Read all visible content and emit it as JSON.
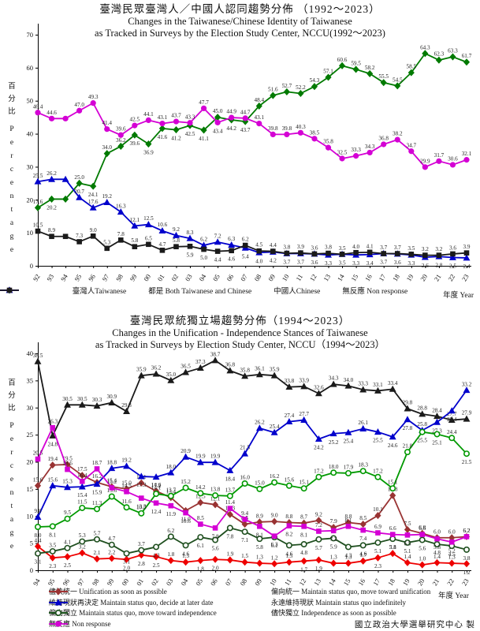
{
  "footer": "國立政治大學選舉研究中心 製",
  "chart_data": [
    {
      "type": "line",
      "title_zh": "臺灣民眾臺灣人／中國人認同趨勢分佈 （1992～2023）",
      "title_en1": "Changes in the Taiwanese/Chinese Identity of Taiwanese",
      "title_en2": "as Tracked in Surveys by the Election Study Center, NCCU(1992～2023)",
      "x_axis_label": "年度 Year",
      "y_axis_label_zh": "百分比",
      "y_axis_label_en": "Percentage",
      "ylim": [
        0,
        70
      ],
      "y_ticks": [
        0,
        10,
        20,
        30,
        40,
        50,
        60,
        70
      ],
      "grid": false,
      "legend_position": "bottom",
      "categories": [
        "92",
        "93",
        "94",
        "95",
        "96",
        "97",
        "98",
        "99",
        "00",
        "01",
        "02",
        "03",
        "04",
        "05",
        "06",
        "07",
        "08",
        "09",
        "10",
        "11",
        "12",
        "13",
        "14",
        "15",
        "16",
        "17",
        "18",
        "19",
        "20",
        "21",
        "22",
        "23"
      ],
      "series": [
        {
          "key": "taiwanese",
          "legend": "臺灣人Taiwanese",
          "color": "#007A00",
          "marker": "diamond",
          "values": [
            17.6,
            20.2,
            20.2,
            25.0,
            24.1,
            34.0,
            36.2,
            39.6,
            36.9,
            41.6,
            41.2,
            42.5,
            41.1,
            45.0,
            44.2,
            43.7,
            48.4,
            51.6,
            52.7,
            52.2,
            54.3,
            57.1,
            60.6,
            59.5,
            58.2,
            55.5,
            54.5,
            58.5,
            64.3,
            62.3,
            63.3,
            61.7
          ],
          "skip_label": [
            2
          ],
          "label_below": [
            1,
            4,
            7,
            8,
            9,
            10,
            11,
            12,
            14,
            15
          ]
        },
        {
          "key": "both",
          "legend": "都是 Both Taiwanese and Chinese",
          "color": "#D400D4",
          "marker": "circle",
          "values": [
            46.4,
            44.6,
            44.6,
            47.0,
            49.3,
            41.4,
            39.6,
            42.5,
            44.1,
            43.1,
            43.7,
            43.3,
            47.7,
            43.4,
            44.9,
            44.7,
            43.1,
            39.8,
            39.8,
            40.3,
            38.5,
            35.8,
            32.5,
            33.3,
            34.3,
            36.8,
            38.2,
            34.7,
            29.9,
            31.7,
            30.6,
            32.1
          ],
          "skip_label": [
            2
          ],
          "label_below": [
            13
          ]
        },
        {
          "key": "chinese",
          "legend": "中國人Chinese",
          "color": "#0000CC",
          "marker": "triangle",
          "values": [
            25.5,
            26.2,
            26.2,
            20.7,
            17.6,
            19.2,
            16.3,
            12.1,
            12.5,
            10.6,
            9.2,
            8.3,
            6.2,
            7.2,
            6.3,
            5.4,
            4.0,
            4.2,
            3.7,
            3.7,
            3.6,
            3.3,
            3.5,
            3.3,
            3.4,
            3.7,
            3.6,
            3.3,
            2.6,
            2.8,
            2.5,
            2.4
          ],
          "skip_label": [
            2
          ],
          "label_below": [
            15,
            16,
            17,
            18,
            19,
            20,
            21,
            22,
            23,
            24,
            25,
            26,
            27,
            28,
            29,
            30,
            31
          ]
        },
        {
          "key": "nonresponse",
          "legend": "無反應 Non response",
          "color": "#1A1A1A",
          "marker": "square",
          "values": [
            10.5,
            8.9,
            8.9,
            7.3,
            9.0,
            5.3,
            7.8,
            5.8,
            6.5,
            4.7,
            5.8,
            5.9,
            5.0,
            4.4,
            4.6,
            6.2,
            4.5,
            4.4,
            3.8,
            3.9,
            3.6,
            3.8,
            3.5,
            4.0,
            4.1,
            3.7,
            3.7,
            3.5,
            3.2,
            3.2,
            3.6,
            3.9
          ],
          "skip_label": [
            2
          ],
          "label_below": [
            11,
            12,
            13,
            14
          ]
        }
      ]
    },
    {
      "type": "line",
      "title_zh": "臺灣民眾統獨立場趨勢分佈（1994～2023）",
      "title_en1": "Changes in the Unification - Independence Stances of Taiwanese",
      "title_en2": "as Tracked in Surveys by Election Study Center, NCCU（1994～2023）",
      "x_axis_label": "年度 Year",
      "y_axis_label_zh": "百分比",
      "y_axis_label_en": "Percentage",
      "ylim": [
        0,
        40
      ],
      "y_ticks": [
        0,
        5,
        10,
        15,
        20,
        25,
        30,
        35,
        40
      ],
      "grid": false,
      "legend_position": "bottom",
      "categories": [
        "94",
        "95",
        "96",
        "97",
        "98",
        "99",
        "00",
        "01",
        "02",
        "03",
        "04",
        "05",
        "06",
        "07",
        "08",
        "09",
        "10",
        "11",
        "12",
        "13",
        "14",
        "15",
        "16",
        "17",
        "18",
        "19",
        "20",
        "21",
        "22",
        "23"
      ],
      "series": [
        {
          "key": "unification-asap",
          "legend": "儘快統一 Unification as soon as possible",
          "color": "#EE0000",
          "marker": "diamond",
          "values": [
            4.4,
            2.3,
            2.5,
            3.2,
            2.1,
            2.2,
            2.0,
            2.8,
            2.5,
            1.8,
            1.5,
            1.8,
            2.0,
            1.9,
            1.5,
            1.3,
            1.2,
            1.5,
            1.7,
            1.9,
            1.3,
            1.3,
            1.7,
            2.3,
            3.1,
            1.4,
            1.0,
            1.4,
            1.3,
            1.2
          ],
          "skip_label": [],
          "label_below": [
            1,
            2,
            6,
            7,
            8,
            11,
            12,
            18,
            19,
            23,
            29
          ]
        },
        {
          "key": "lean-unification",
          "legend": "偏向統一 Maintain status quo, move toward unification",
          "color": "#993333",
          "marker": "diamond",
          "values": [
            15.6,
            19.4,
            19.5,
            17.5,
            16.2,
            15.4,
            15.0,
            16.1,
            14.6,
            13.4,
            11.0,
            12.5,
            12.1,
            10.3,
            8.5,
            8.9,
            9.0,
            8.8,
            8.7,
            9.2,
            7.9,
            8.8,
            8.5,
            10.1,
            13.8,
            7.5,
            6.8,
            6.0,
            6.0,
            6.2
          ],
          "skip_label": [],
          "label_below": [
            10
          ]
        },
        {
          "key": "status-quo-decide-later",
          "legend": "維持現狀再決定 Maintain status quo, decide at later date",
          "color": "#1A1A1A",
          "marker": "triangle",
          "values": [
            38.5,
            24.8,
            30.5,
            30.5,
            30.3,
            30.9,
            29.3,
            35.9,
            36.2,
            35.0,
            36.5,
            37.3,
            38.7,
            36.8,
            35.8,
            36.1,
            35.9,
            33.8,
            33.9,
            32.6,
            34.3,
            34.0,
            33.3,
            33.1,
            33.4,
            29.8,
            28.8,
            28.4,
            27.7,
            27.9
          ],
          "skip_label": [],
          "label_below": [
            1
          ]
        },
        {
          "key": "status-quo-indefinitely",
          "legend": "永遠維持現狀 Maintain status quo indefinitely",
          "color": "#0000CC",
          "marker": "triangle",
          "values": [
            9.8,
            15.6,
            15.3,
            15.4,
            15.9,
            18.8,
            19.2,
            17.3,
            17.2,
            18.0,
            20.9,
            19.9,
            19.9,
            18.4,
            21.5,
            26.2,
            25.4,
            27.4,
            27.7,
            24.2,
            25.2,
            25.4,
            26.1,
            25.5,
            24.6,
            27.8,
            25.8,
            27.3,
            29.4,
            33.2
          ],
          "skip_label": [],
          "label_below": [
            3,
            4,
            7,
            8,
            13,
            19,
            20,
            21,
            23,
            24,
            25,
            27,
            28
          ]
        },
        {
          "key": "lean-independence",
          "legend": "偏向獨立 Maintain status quo, move toward independence",
          "color": "#009900",
          "marker": "opencircle",
          "values": [
            8.0,
            8.1,
            9.5,
            11.5,
            11.3,
            13.6,
            11.6,
            10.5,
            14.1,
            13.7,
            15.2,
            14.2,
            13.8,
            13.7,
            16.0,
            15.0,
            16.2,
            15.6,
            15.1,
            17.2,
            18.0,
            17.9,
            18.3,
            17.2,
            15.1,
            21.8,
            25.5,
            25.1,
            24.4,
            21.5
          ],
          "skip_label": [],
          "label_below": [
            0,
            1,
            26,
            27,
            29
          ]
        },
        {
          "key": "independence-asap",
          "legend": "儘快獨立 Independence as soon as possible",
          "color": "#1F4F1F",
          "marker": "opencircle",
          "values": [
            3.1,
            3.5,
            4.1,
            5.3,
            5.7,
            4.7,
            3.1,
            3.7,
            4.3,
            6.2,
            4.6,
            6.1,
            5.6,
            7.8,
            7.1,
            5.8,
            6.1,
            4.6,
            4.8,
            5.7,
            5.9,
            4.3,
            4.6,
            5.1,
            5.8,
            5.1,
            5.6,
            4.8,
            4.5,
            3.8
          ],
          "skip_label": [],
          "label_below": [
            0,
            6,
            8,
            10,
            11,
            12,
            13,
            14,
            15,
            16,
            17,
            18,
            19,
            20,
            21,
            22,
            23,
            24,
            25,
            26,
            27,
            28,
            29
          ]
        },
        {
          "key": "non-response",
          "legend": "無反應 Non response",
          "color": "#D400D4",
          "marker": "square",
          "values": [
            20.5,
            26.3,
            18.6,
            16.4,
            18.7,
            15.2,
            14.5,
            13.3,
            12.4,
            11.9,
            10.6,
            8.5,
            7.8,
            11.4,
            9.4,
            8.1,
            6.3,
            8.2,
            8.1,
            7.2,
            7.3,
            8.1,
            7.4,
            6.9,
            6.6,
            6.5,
            6.6,
            5.8,
            5.2,
            6.2
          ],
          "skip_label": [],
          "label_below": [
            7,
            8,
            9,
            10,
            12,
            15,
            16,
            17,
            18,
            20,
            22,
            25,
            27,
            28
          ]
        }
      ]
    }
  ]
}
